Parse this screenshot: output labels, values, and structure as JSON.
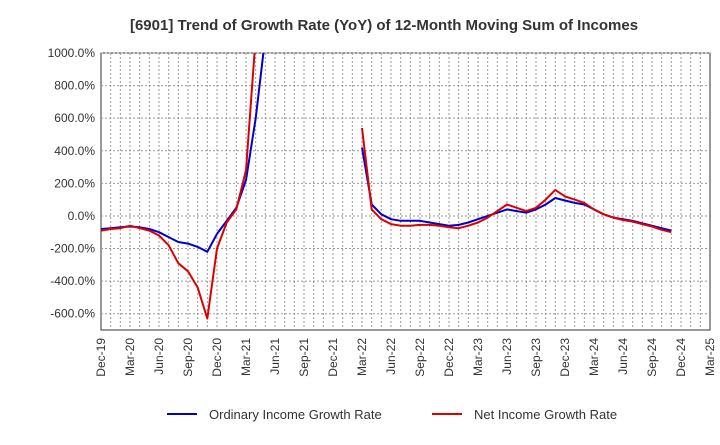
{
  "chart_data": {
    "type": "line",
    "title": "[6901]  Trend of Growth Rate (YoY) of 12-Month Moving Sum of Incomes",
    "xlabel": "",
    "ylabel": "",
    "ylim": [
      -700,
      1000
    ],
    "y_ticks": [
      1000,
      800,
      600,
      400,
      200,
      0,
      -200,
      -400,
      -600
    ],
    "y_tick_labels": [
      "1000.0%",
      "800.0%",
      "600.0%",
      "400.0%",
      "200.0%",
      "0.0%",
      "-200.0%",
      "-400.0%",
      "-600.0%"
    ],
    "x_tick_labels": [
      "Dec-19",
      "Mar-20",
      "Jun-20",
      "Sep-20",
      "Dec-20",
      "Mar-21",
      "Jun-21",
      "Sep-21",
      "Dec-21",
      "Mar-22",
      "Jun-22",
      "Sep-22",
      "Dec-22",
      "Mar-23",
      "Jun-23",
      "Sep-23",
      "Dec-23",
      "Mar-24",
      "Jun-24",
      "Sep-24",
      "Dec-24",
      "Mar-25"
    ],
    "grid": true,
    "legend_position": "bottom",
    "series": [
      {
        "name": "Ordinary Income Growth Rate",
        "color": "#0000cc",
        "values": [
          -80,
          -75,
          -70,
          -65,
          -70,
          -80,
          -100,
          -130,
          -160,
          -170,
          -190,
          -220,
          -110,
          -30,
          50,
          220,
          600,
          1100,
          null,
          null,
          null,
          null,
          null,
          null,
          null,
          null,
          null,
          420,
          70,
          10,
          -20,
          -30,
          -30,
          -30,
          -40,
          -50,
          -60,
          -55,
          -40,
          -20,
          0,
          20,
          40,
          30,
          20,
          40,
          70,
          110,
          95,
          80,
          70,
          40,
          10,
          -10,
          -20,
          -30,
          -45,
          -60,
          -75,
          -90
        ]
      },
      {
        "name": "Net Income Growth Rate",
        "color": "#dd0000",
        "values": [
          -90,
          -80,
          -75,
          -60,
          -75,
          -90,
          -120,
          -180,
          -290,
          -340,
          -440,
          -630,
          -200,
          -40,
          40,
          280,
          1100,
          null,
          null,
          null,
          null,
          null,
          null,
          null,
          null,
          null,
          null,
          540,
          40,
          -20,
          -50,
          -60,
          -60,
          -55,
          -55,
          -60,
          -70,
          -75,
          -60,
          -40,
          -10,
          30,
          70,
          50,
          30,
          50,
          100,
          160,
          120,
          100,
          80,
          40,
          10,
          -10,
          -25,
          -35,
          -50,
          -65,
          -85,
          -100
        ]
      }
    ]
  }
}
